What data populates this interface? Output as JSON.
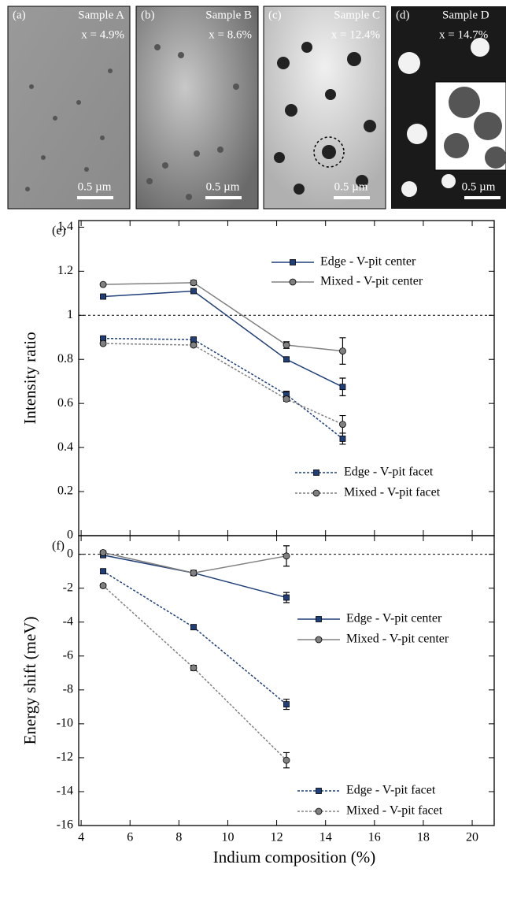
{
  "panels": [
    {
      "label": "(a)",
      "sample": "Sample A",
      "composition": "x = 4.9%",
      "scale": "0.5 µm"
    },
    {
      "label": "(b)",
      "sample": "Sample B",
      "composition": "x = 8.6%",
      "scale": "0.5 µm"
    },
    {
      "label": "(c)",
      "sample": "Sample C",
      "composition": "x = 12.4%",
      "scale": "0.5 µm"
    },
    {
      "label": "(d)",
      "sample": "Sample D",
      "composition": "x = 14.7%",
      "scale": "0.5 µm"
    }
  ],
  "chart_data": [
    {
      "type": "line",
      "panel_label": "(e)",
      "ylabel": "Intensity ratio",
      "x": [
        4.9,
        8.6,
        12.4,
        14.7
      ],
      "xlim": [
        3.9,
        20.9
      ],
      "xticks": [
        4,
        6,
        8,
        10,
        12,
        14,
        16,
        18,
        20
      ],
      "ylim": [
        0,
        1.43
      ],
      "yticks": [
        0,
        0.2,
        0.4,
        0.6,
        0.8,
        1,
        1.2,
        1.4
      ],
      "hline": 1,
      "series": [
        {
          "name": "Edge - V-pit center",
          "color": "#1f3f7a",
          "linestyle": "solid",
          "marker": "square",
          "values": [
            1.085,
            1.11,
            0.8,
            0.675
          ],
          "errors": [
            0.005,
            0.008,
            0.01,
            0.04
          ]
        },
        {
          "name": "Mixed - V-pit center",
          "color": "#808080",
          "linestyle": "solid",
          "marker": "circle",
          "values": [
            1.14,
            1.148,
            0.865,
            0.838
          ],
          "errors": [
            0.005,
            0.01,
            0.015,
            0.06
          ]
        },
        {
          "name": "Edge - V-pit facet",
          "color": "#1f3f7a",
          "linestyle": "dashed",
          "marker": "square",
          "values": [
            0.895,
            0.89,
            0.64,
            0.44
          ],
          "errors": [
            0.005,
            0.008,
            0.015,
            0.025
          ]
        },
        {
          "name": "Mixed - V-pit facet",
          "color": "#808080",
          "linestyle": "dashed",
          "marker": "circle",
          "values": [
            0.872,
            0.865,
            0.62,
            0.505
          ],
          "errors": [
            0.005,
            0.008,
            0.01,
            0.04
          ]
        }
      ]
    },
    {
      "type": "line",
      "panel_label": "(f)",
      "ylabel": "Energy shift (meV)",
      "xlabel": "Indium composition (%)",
      "x": [
        4.9,
        8.6,
        12.4
      ],
      "xlim": [
        3.9,
        20.9
      ],
      "xticks": [
        4,
        6,
        8,
        10,
        12,
        14,
        16,
        18,
        20
      ],
      "ylim": [
        -16,
        1.1
      ],
      "yticks": [
        0,
        -2,
        -4,
        -6,
        -8,
        -10,
        -12,
        -14,
        -16
      ],
      "hline": 0,
      "series": [
        {
          "name": "Edge - V-pit center",
          "color": "#1f3f7a",
          "linestyle": "solid",
          "marker": "square",
          "values": [
            -0.05,
            -1.1,
            -2.55
          ],
          "errors": [
            0.1,
            0.1,
            0.3
          ]
        },
        {
          "name": "Mixed - V-pit center",
          "color": "#808080",
          "linestyle": "solid",
          "marker": "circle",
          "values": [
            0.1,
            -1.1,
            -0.1
          ],
          "errors": [
            0.1,
            0.1,
            0.6
          ]
        },
        {
          "name": "Edge - V-pit facet",
          "color": "#1f3f7a",
          "linestyle": "dashed",
          "marker": "square",
          "values": [
            -1.0,
            -4.3,
            -8.85
          ],
          "errors": [
            0.1,
            0.15,
            0.3
          ]
        },
        {
          "name": "Mixed - V-pit facet",
          "color": "#808080",
          "linestyle": "dashed",
          "marker": "circle",
          "values": [
            -1.85,
            -6.7,
            -12.15
          ],
          "errors": [
            0.1,
            0.15,
            0.45
          ]
        }
      ]
    }
  ]
}
